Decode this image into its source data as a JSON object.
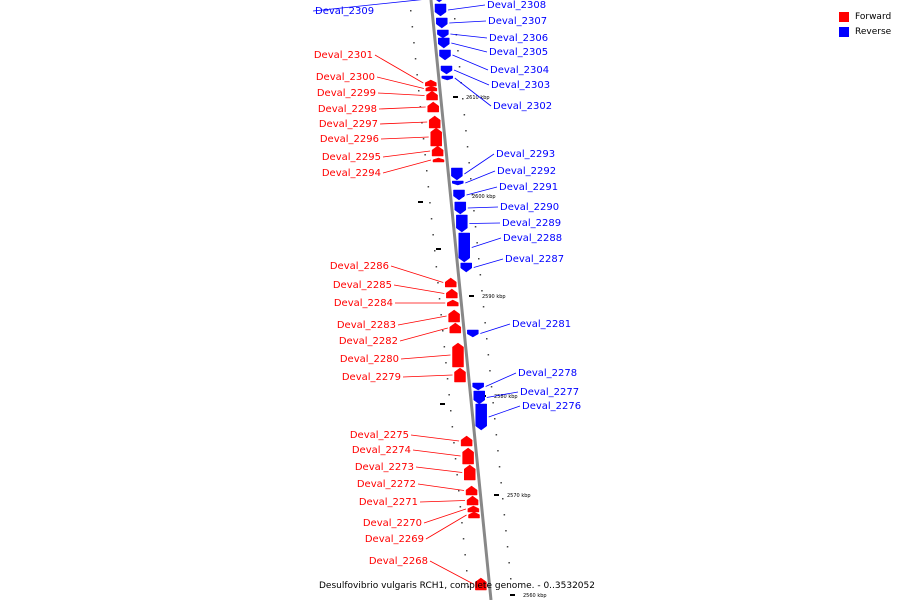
{
  "legend": {
    "forward_label": "Forward",
    "reverse_label": "Reverse",
    "forward_color": "#ff0000",
    "reverse_color": "#0000ff"
  },
  "caption": "Desulfovibrio vulgaris RCH1, complete genome. - 0..3532052",
  "scale_labels": [
    "2610 kbp",
    "2600 kbp",
    "2590 kbp",
    "2580 kbp",
    "2570 kbp",
    "2560 kbp"
  ],
  "genes": [
    {
      "name": "Deval_2309",
      "strand": "reverse"
    },
    {
      "name": "Deval_2308",
      "strand": "reverse"
    },
    {
      "name": "Deval_2307",
      "strand": "reverse"
    },
    {
      "name": "Deval_2306",
      "strand": "reverse"
    },
    {
      "name": "Deval_2305",
      "strand": "reverse"
    },
    {
      "name": "Deval_2304",
      "strand": "reverse"
    },
    {
      "name": "Deval_2303",
      "strand": "reverse"
    },
    {
      "name": "Deval_2302",
      "strand": "reverse"
    },
    {
      "name": "Deval_2301",
      "strand": "forward"
    },
    {
      "name": "Deval_2300",
      "strand": "forward"
    },
    {
      "name": "Deval_2299",
      "strand": "forward"
    },
    {
      "name": "Deval_2298",
      "strand": "forward"
    },
    {
      "name": "Deval_2297",
      "strand": "forward"
    },
    {
      "name": "Deval_2296",
      "strand": "forward"
    },
    {
      "name": "Deval_2295",
      "strand": "forward"
    },
    {
      "name": "Deval_2294",
      "strand": "forward"
    },
    {
      "name": "Deval_2293",
      "strand": "reverse"
    },
    {
      "name": "Deval_2292",
      "strand": "reverse"
    },
    {
      "name": "Deval_2291",
      "strand": "reverse"
    },
    {
      "name": "Deval_2290",
      "strand": "reverse"
    },
    {
      "name": "Deval_2289",
      "strand": "reverse"
    },
    {
      "name": "Deval_2288",
      "strand": "reverse"
    },
    {
      "name": "Deval_2287",
      "strand": "reverse"
    },
    {
      "name": "Deval_2286",
      "strand": "forward"
    },
    {
      "name": "Deval_2285",
      "strand": "forward"
    },
    {
      "name": "Deval_2284",
      "strand": "forward"
    },
    {
      "name": "Deval_2283",
      "strand": "forward"
    },
    {
      "name": "Deval_2282",
      "strand": "forward"
    },
    {
      "name": "Deval_2280",
      "strand": "forward"
    },
    {
      "name": "Deval_2279",
      "strand": "forward"
    },
    {
      "name": "Deval_2281",
      "strand": "reverse"
    },
    {
      "name": "Deval_2278",
      "strand": "reverse"
    },
    {
      "name": "Deval_2277",
      "strand": "reverse"
    },
    {
      "name": "Deval_2276",
      "strand": "reverse"
    },
    {
      "name": "Deval_2275",
      "strand": "forward"
    },
    {
      "name": "Deval_2274",
      "strand": "forward"
    },
    {
      "name": "Deval_2273",
      "strand": "forward"
    },
    {
      "name": "Deval_2272",
      "strand": "forward"
    },
    {
      "name": "Deval_2271",
      "strand": "forward"
    },
    {
      "name": "Deval_2270",
      "strand": "forward"
    },
    {
      "name": "Deval_2269",
      "strand": "forward"
    },
    {
      "name": "Deval_2268",
      "strand": "forward"
    }
  ]
}
